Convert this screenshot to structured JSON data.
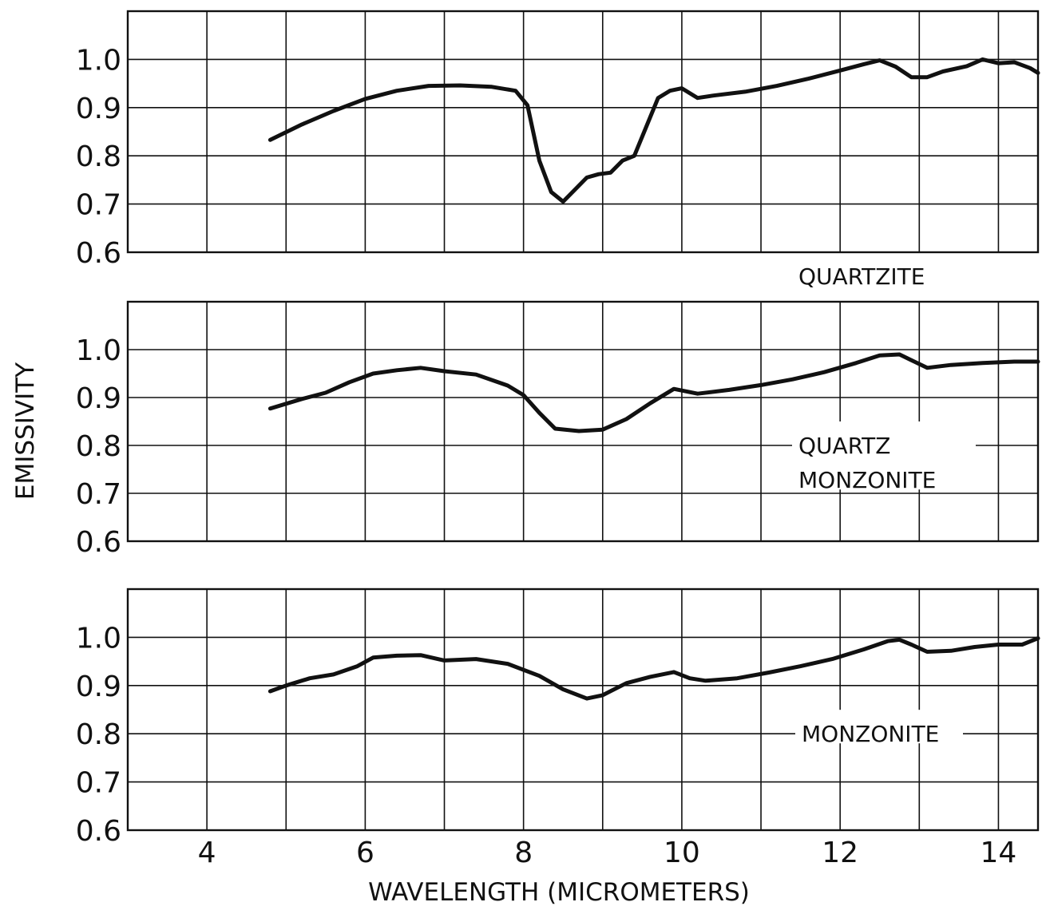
{
  "chart_data": {
    "type": "line",
    "ylabel": "EMISSIVITY",
    "xlabel": "WAVELENGTH (MICROMETERS)",
    "xlim": [
      3,
      14.5
    ],
    "ylim": [
      0.6,
      1.1
    ],
    "x_ticks": [
      "4",
      "6",
      "8",
      "10",
      "12",
      "14"
    ],
    "y_ticks": [
      "0.6",
      "0.7",
      "0.8",
      "0.9",
      "1.0"
    ],
    "grid": true,
    "panels": [
      {
        "label": "QUARTZITE",
        "series": [
          {
            "name": "QUARTZITE",
            "x": [
              4.8,
              5.2,
              5.6,
              6.0,
              6.4,
              6.8,
              7.2,
              7.6,
              7.9,
              8.05,
              8.2,
              8.35,
              8.5,
              8.65,
              8.8,
              8.95,
              9.1,
              9.25,
              9.4,
              9.55,
              9.7,
              9.85,
              10.0,
              10.2,
              10.4,
              10.8,
              11.2,
              11.6,
              12.0,
              12.3,
              12.5,
              12.7,
              12.9,
              13.1,
              13.3,
              13.6,
              13.8,
              14.0,
              14.2,
              14.4,
              14.5
            ],
            "y": [
              0.833,
              0.865,
              0.893,
              0.918,
              0.935,
              0.945,
              0.946,
              0.943,
              0.935,
              0.905,
              0.79,
              0.725,
              0.705,
              0.73,
              0.755,
              0.762,
              0.765,
              0.79,
              0.8,
              0.86,
              0.92,
              0.935,
              0.94,
              0.92,
              0.925,
              0.933,
              0.945,
              0.96,
              0.977,
              0.99,
              0.998,
              0.985,
              0.963,
              0.963,
              0.975,
              0.986,
              1.0,
              0.992,
              0.994,
              0.982,
              0.972
            ]
          }
        ]
      },
      {
        "label": "QUARTZ MONZONITE",
        "label_lines": [
          "QUARTZ",
          "MONZONITE"
        ],
        "series": [
          {
            "name": "QUARTZ MONZONITE",
            "x": [
              4.8,
              5.2,
              5.5,
              5.8,
              6.1,
              6.4,
              6.7,
              7.0,
              7.4,
              7.8,
              8.0,
              8.2,
              8.4,
              8.7,
              9.0,
              9.3,
              9.6,
              9.9,
              10.2,
              10.6,
              11.0,
              11.4,
              11.8,
              12.2,
              12.5,
              12.75,
              12.9,
              13.1,
              13.4,
              13.8,
              14.2,
              14.5
            ],
            "y": [
              0.877,
              0.897,
              0.91,
              0.932,
              0.95,
              0.957,
              0.962,
              0.955,
              0.948,
              0.925,
              0.905,
              0.868,
              0.835,
              0.83,
              0.833,
              0.855,
              0.888,
              0.918,
              0.908,
              0.916,
              0.926,
              0.938,
              0.953,
              0.972,
              0.988,
              0.99,
              0.978,
              0.962,
              0.968,
              0.972,
              0.975,
              0.975
            ]
          }
        ]
      },
      {
        "label": "MONZONITE",
        "series": [
          {
            "name": "MONZONITE",
            "x": [
              4.8,
              5.0,
              5.3,
              5.6,
              5.9,
              6.1,
              6.4,
              6.7,
              7.0,
              7.4,
              7.8,
              8.2,
              8.5,
              8.8,
              9.0,
              9.3,
              9.6,
              9.9,
              10.1,
              10.3,
              10.7,
              11.1,
              11.5,
              11.9,
              12.3,
              12.6,
              12.75,
              12.9,
              13.1,
              13.4,
              13.7,
              14.0,
              14.3,
              14.5
            ],
            "y": [
              0.888,
              0.9,
              0.915,
              0.923,
              0.94,
              0.958,
              0.962,
              0.963,
              0.952,
              0.955,
              0.945,
              0.92,
              0.892,
              0.873,
              0.88,
              0.905,
              0.918,
              0.928,
              0.915,
              0.91,
              0.915,
              0.927,
              0.94,
              0.955,
              0.975,
              0.992,
              0.995,
              0.985,
              0.97,
              0.972,
              0.98,
              0.985,
              0.985,
              0.998
            ]
          }
        ]
      }
    ]
  }
}
